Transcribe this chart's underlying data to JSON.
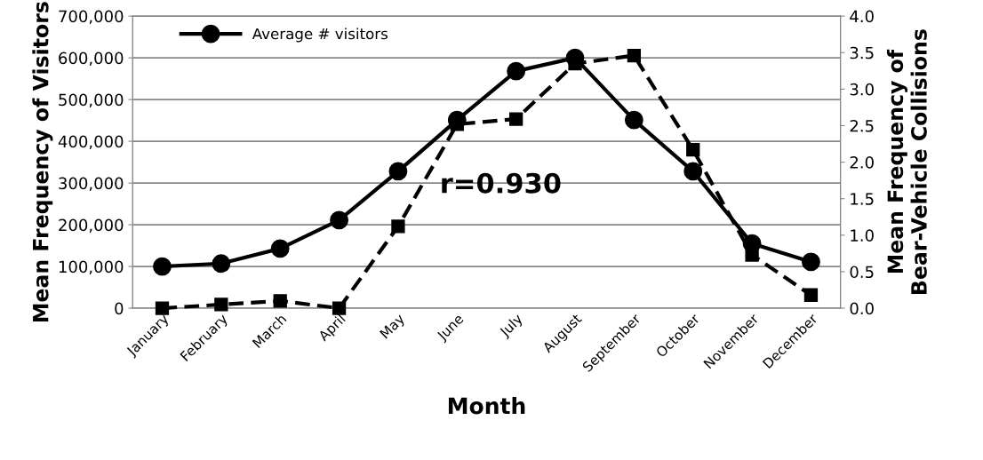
{
  "chart_data": {
    "type": "line",
    "xlabel": "Month",
    "ylabel": "Mean Frequency of Visitors",
    "y2label": "Mean Frequency of Bear-Vehicle Collisions",
    "categories": [
      "January",
      "February",
      "March",
      "April",
      "May",
      "June",
      "July",
      "August",
      "September",
      "October",
      "November",
      "December"
    ],
    "series": [
      {
        "name": "Average # visitors",
        "color": "#000000",
        "marker": "circle",
        "line_style": "solid",
        "values": [
          100000,
          107000,
          143000,
          211000,
          328000,
          451000,
          568000,
          600000,
          451000,
          328000,
          155000,
          111000
        ]
      },
      {
        "color": "#000000",
        "marker": "square",
        "line_style": "dashed",
        "axis": "y2",
        "values": [
          0.0,
          0.05,
          0.1,
          0.0,
          1.12,
          2.52,
          2.59,
          3.35,
          3.46,
          2.17,
          0.73,
          0.18
        ]
      }
    ],
    "ylim": [
      0,
      700000
    ],
    "yticks": [
      {
        "value": 0,
        "label": "0"
      },
      {
        "value": 100000,
        "label": "100,000"
      },
      {
        "value": 200000,
        "label": "200,000"
      },
      {
        "value": 300000,
        "label": "300,000"
      },
      {
        "value": 400000,
        "label": "400,000"
      },
      {
        "value": 500000,
        "label": "500,000"
      },
      {
        "value": 600000,
        "label": "600,000"
      },
      {
        "value": 700000,
        "label": "700,000"
      }
    ],
    "y2lim": [
      0,
      4
    ],
    "y2ticks": [
      {
        "value": 0,
        "label": "0.0"
      },
      {
        "value": 0.5,
        "label": "0.5"
      },
      {
        "value": 1,
        "label": "1.0"
      },
      {
        "value": 1.5,
        "label": "1.5"
      },
      {
        "value": 2,
        "label": "2.0"
      },
      {
        "value": 2.5,
        "label": "2.5"
      },
      {
        "value": 3,
        "label": "3.0"
      },
      {
        "value": 3.5,
        "label": "3.5"
      },
      {
        "value": 4,
        "label": "4.0"
      }
    ],
    "grid": "y",
    "legend": "top left",
    "annotations": [
      "r=0.930"
    ]
  }
}
